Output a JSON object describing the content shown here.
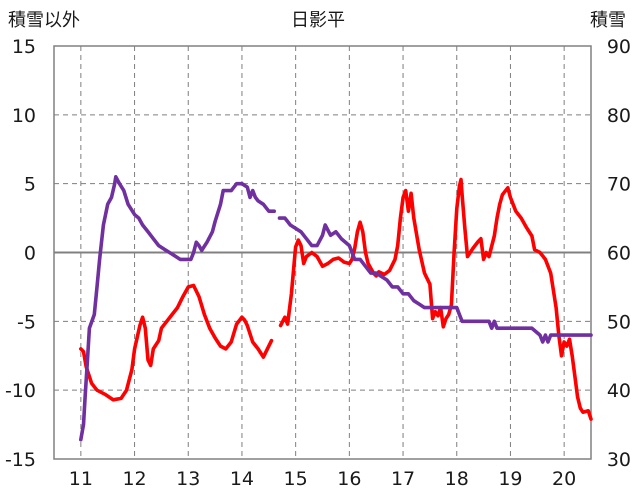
{
  "chart_data": {
    "type": "line",
    "title": "日影平",
    "left_axis_label": "積雪以外",
    "right_axis_label": "積雪",
    "xlim": [
      10.5,
      20.5
    ],
    "x_ticks": [
      "11",
      "12",
      "13",
      "14",
      "15",
      "16",
      "17",
      "18",
      "19",
      "20"
    ],
    "left_ylim": [
      -15,
      15
    ],
    "left_ticks": [
      "15",
      "10",
      "5",
      "0",
      "-5",
      "-10",
      "-15"
    ],
    "right_ylim": [
      30,
      90
    ],
    "right_ticks": [
      "90",
      "80",
      "70",
      "60",
      "50",
      "40",
      "30"
    ],
    "grid": true,
    "series": [
      {
        "axis": "left",
        "color": "#ff0000",
        "segments": [
          [
            [
              11.0,
              -7.0
            ],
            [
              11.05,
              -7.2
            ],
            [
              11.1,
              -8.3
            ],
            [
              11.2,
              -9.5
            ],
            [
              11.3,
              -10.0
            ],
            [
              11.45,
              -10.3
            ],
            [
              11.6,
              -10.7
            ],
            [
              11.75,
              -10.6
            ],
            [
              11.85,
              -10.0
            ],
            [
              11.95,
              -8.5
            ],
            [
              12.0,
              -7.0
            ],
            [
              12.1,
              -5.3
            ],
            [
              12.15,
              -4.7
            ],
            [
              12.2,
              -5.5
            ],
            [
              12.25,
              -7.8
            ],
            [
              12.3,
              -8.2
            ],
            [
              12.35,
              -7.0
            ],
            [
              12.45,
              -6.4
            ],
            [
              12.5,
              -5.5
            ],
            [
              12.6,
              -5.0
            ],
            [
              12.7,
              -4.5
            ],
            [
              12.8,
              -4.0
            ],
            [
              12.9,
              -3.2
            ],
            [
              13.0,
              -2.5
            ],
            [
              13.1,
              -2.4
            ],
            [
              13.2,
              -3.2
            ],
            [
              13.3,
              -4.5
            ],
            [
              13.4,
              -5.5
            ],
            [
              13.5,
              -6.2
            ],
            [
              13.6,
              -6.8
            ],
            [
              13.7,
              -7.0
            ],
            [
              13.8,
              -6.5
            ],
            [
              13.9,
              -5.2
            ],
            [
              14.0,
              -4.7
            ],
            [
              14.05,
              -4.9
            ],
            [
              14.1,
              -5.3
            ],
            [
              14.2,
              -6.5
            ],
            [
              14.3,
              -7.0
            ],
            [
              14.4,
              -7.6
            ],
            [
              14.45,
              -7.2
            ],
            [
              14.5,
              -6.8
            ],
            [
              14.55,
              -6.4
            ]
          ],
          [
            [
              14.72,
              -5.3
            ],
            [
              14.8,
              -4.7
            ],
            [
              14.85,
              -5.2
            ],
            [
              14.92,
              -3.0
            ],
            [
              15.0,
              0.4
            ],
            [
              15.05,
              0.9
            ],
            [
              15.1,
              0.5
            ],
            [
              15.15,
              -0.8
            ],
            [
              15.2,
              -0.3
            ],
            [
              15.3,
              0.0
            ],
            [
              15.4,
              -0.3
            ],
            [
              15.5,
              -1.0
            ],
            [
              15.6,
              -0.8
            ],
            [
              15.7,
              -0.5
            ],
            [
              15.8,
              -0.4
            ],
            [
              15.9,
              -0.7
            ],
            [
              16.0,
              -0.8
            ],
            [
              16.05,
              -0.5
            ],
            [
              16.1,
              0.3
            ],
            [
              16.15,
              1.5
            ],
            [
              16.2,
              2.2
            ],
            [
              16.25,
              1.5
            ],
            [
              16.3,
              0.0
            ],
            [
              16.35,
              -0.8
            ],
            [
              16.45,
              -1.5
            ],
            [
              16.5,
              -1.7
            ],
            [
              16.55,
              -1.4
            ],
            [
              16.65,
              -1.6
            ],
            [
              16.75,
              -1.3
            ],
            [
              16.85,
              -0.5
            ],
            [
              16.9,
              0.5
            ],
            [
              16.95,
              2.5
            ],
            [
              17.0,
              4.0
            ],
            [
              17.05,
              4.5
            ],
            [
              17.1,
              3.0
            ],
            [
              17.15,
              4.3
            ],
            [
              17.2,
              2.5
            ],
            [
              17.3,
              0.2
            ],
            [
              17.4,
              -1.5
            ],
            [
              17.5,
              -2.3
            ],
            [
              17.55,
              -4.8
            ],
            [
              17.6,
              -4.3
            ],
            [
              17.65,
              -4.6
            ],
            [
              17.7,
              -4.0
            ],
            [
              17.75,
              -5.4
            ],
            [
              17.8,
              -4.8
            ],
            [
              17.85,
              -4.5
            ],
            [
              17.9,
              -3.8
            ],
            [
              17.95,
              0.0
            ],
            [
              18.0,
              3.2
            ],
            [
              18.05,
              4.8
            ],
            [
              18.08,
              5.3
            ],
            [
              18.1,
              4.2
            ],
            [
              18.15,
              1.8
            ],
            [
              18.2,
              -0.3
            ],
            [
              18.3,
              0.3
            ],
            [
              18.4,
              0.8
            ],
            [
              18.45,
              1.0
            ],
            [
              18.5,
              -0.5
            ],
            [
              18.55,
              0.0
            ],
            [
              18.6,
              -0.3
            ],
            [
              18.7,
              1.2
            ],
            [
              18.75,
              2.5
            ],
            [
              18.8,
              3.5
            ],
            [
              18.85,
              4.2
            ],
            [
              18.95,
              4.7
            ],
            [
              19.0,
              4.0
            ],
            [
              19.05,
              3.5
            ],
            [
              19.1,
              3.0
            ],
            [
              19.2,
              2.5
            ],
            [
              19.3,
              1.8
            ],
            [
              19.4,
              1.2
            ],
            [
              19.45,
              0.2
            ],
            [
              19.55,
              0.0
            ],
            [
              19.65,
              -0.5
            ],
            [
              19.75,
              -1.5
            ],
            [
              19.85,
              -4.0
            ],
            [
              19.9,
              -6.0
            ],
            [
              19.95,
              -7.5
            ],
            [
              20.0,
              -6.5
            ],
            [
              20.05,
              -6.8
            ],
            [
              20.1,
              -6.3
            ],
            [
              20.15,
              -7.5
            ],
            [
              20.2,
              -9.0
            ],
            [
              20.25,
              -10.5
            ],
            [
              20.3,
              -11.3
            ],
            [
              20.35,
              -11.6
            ],
            [
              20.45,
              -11.5
            ],
            [
              20.5,
              -12.1
            ]
          ]
        ]
      },
      {
        "axis": "right",
        "color": "#7030a0",
        "segments": [
          [
            [
              11.0,
              32.8
            ],
            [
              11.05,
              35.0
            ],
            [
              11.08,
              39.0
            ],
            [
              11.12,
              44.0
            ],
            [
              11.16,
              49.0
            ],
            [
              11.25,
              51.0
            ],
            [
              11.3,
              55.0
            ],
            [
              11.35,
              59.0
            ],
            [
              11.42,
              64.0
            ],
            [
              11.5,
              67.0
            ],
            [
              11.57,
              68.0
            ],
            [
              11.63,
              70.0
            ],
            [
              11.65,
              71.0
            ],
            [
              11.72,
              70.0
            ],
            [
              11.8,
              69.0
            ],
            [
              11.88,
              67.0
            ],
            [
              12.0,
              65.5
            ],
            [
              12.08,
              65.0
            ],
            [
              12.15,
              64.0
            ],
            [
              12.25,
              63.0
            ],
            [
              12.35,
              62.0
            ],
            [
              12.45,
              61.0
            ],
            [
              12.55,
              60.5
            ],
            [
              12.65,
              60.0
            ],
            [
              12.75,
              59.5
            ],
            [
              12.85,
              59.0
            ],
            [
              12.95,
              59.0
            ],
            [
              13.05,
              59.0
            ],
            [
              13.1,
              60.0
            ],
            [
              13.15,
              61.5
            ],
            [
              13.2,
              61.0
            ],
            [
              13.25,
              60.3
            ],
            [
              13.35,
              61.5
            ],
            [
              13.45,
              63.0
            ],
            [
              13.5,
              64.5
            ],
            [
              13.6,
              67.0
            ],
            [
              13.65,
              69.0
            ],
            [
              13.8,
              69.0
            ],
            [
              13.9,
              70.0
            ],
            [
              14.0,
              70.0
            ],
            [
              14.1,
              69.5
            ],
            [
              14.15,
              68.0
            ],
            [
              14.2,
              69.0
            ],
            [
              14.25,
              68.0
            ],
            [
              14.3,
              67.5
            ],
            [
              14.4,
              67.0
            ],
            [
              14.5,
              66.0
            ],
            [
              14.6,
              66.0
            ]
          ],
          [
            [
              14.7,
              65.0
            ],
            [
              14.8,
              65.0
            ],
            [
              14.85,
              64.5
            ],
            [
              14.9,
              64.0
            ],
            [
              15.0,
              63.5
            ],
            [
              15.1,
              63.0
            ],
            [
              15.2,
              62.0
            ],
            [
              15.3,
              61.0
            ],
            [
              15.4,
              61.0
            ],
            [
              15.5,
              62.5
            ],
            [
              15.55,
              64.0
            ],
            [
              15.65,
              62.5
            ],
            [
              15.75,
              63.0
            ],
            [
              15.85,
              62.0
            ],
            [
              16.0,
              61.0
            ],
            [
              16.1,
              59.0
            ],
            [
              16.2,
              59.0
            ],
            [
              16.3,
              58.0
            ],
            [
              16.4,
              57.0
            ],
            [
              16.5,
              57.0
            ],
            [
              16.6,
              56.5
            ],
            [
              16.7,
              56.0
            ],
            [
              16.8,
              55.0
            ],
            [
              16.9,
              55.0
            ],
            [
              17.0,
              54.0
            ],
            [
              17.1,
              54.0
            ],
            [
              17.2,
              53.0
            ],
            [
              17.3,
              52.5
            ],
            [
              17.4,
              52.0
            ],
            [
              17.5,
              52.0
            ],
            [
              17.6,
              52.0
            ],
            [
              17.7,
              52.0
            ],
            [
              17.8,
              52.0
            ],
            [
              18.0,
              52.0
            ],
            [
              18.05,
              51.0
            ],
            [
              18.1,
              50.0
            ],
            [
              18.2,
              50.0
            ],
            [
              18.3,
              50.0
            ],
            [
              18.5,
              50.0
            ],
            [
              18.6,
              50.0
            ],
            [
              18.65,
              49.0
            ],
            [
              18.7,
              50.0
            ],
            [
              18.75,
              49.0
            ],
            [
              18.8,
              49.0
            ],
            [
              19.0,
              49.0
            ],
            [
              19.2,
              49.0
            ],
            [
              19.4,
              49.0
            ],
            [
              19.55,
              48.0
            ],
            [
              19.6,
              47.0
            ],
            [
              19.65,
              48.0
            ],
            [
              19.7,
              47.0
            ],
            [
              19.75,
              48.0
            ],
            [
              19.8,
              48.0
            ],
            [
              20.0,
              48.0
            ],
            [
              20.2,
              48.0
            ],
            [
              20.5,
              48.0
            ]
          ]
        ]
      }
    ]
  }
}
